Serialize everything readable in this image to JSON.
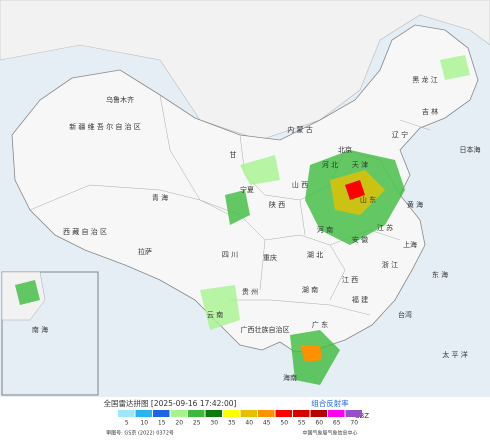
{
  "map": {
    "labels": [
      "新 疆 维 吾 尔 自 治 区",
      "乌鲁木齐",
      "西 藏 自 治 区",
      "拉萨",
      "青 海",
      "甘",
      "宁夏",
      "陕 西",
      "山 西",
      "河 北",
      "北京",
      "天 津",
      "内 蒙 古",
      "山 东",
      "河 南",
      "湖 北",
      "重庆",
      "四 川",
      "湖 南",
      "江 西",
      "安 徽",
      "江 苏",
      "上海",
      "浙 江",
      "福 建",
      "台湾",
      "广 东",
      "广西壮族自治区",
      "贵 州",
      "云 南",
      "海南",
      "黑 龙 江",
      "吉 林",
      "辽 宁",
      "黄 海",
      "东 海",
      "日本海",
      "太 平 洋",
      "南 海"
    ]
  },
  "legend": {
    "title": "全国雷达拼图 [2025-09-16 17:42:00]",
    "product": "组合反射率",
    "unit": "dBZ",
    "items": [
      {
        "value": 5,
        "color": "#9ee6f8"
      },
      {
        "value": 10,
        "color": "#28b4f0"
      },
      {
        "value": 15,
        "color": "#1e64e6"
      },
      {
        "value": 20,
        "color": "#a6f28f"
      },
      {
        "value": 25,
        "color": "#3dba3d"
      },
      {
        "value": 30,
        "color": "#0a7a0a"
      },
      {
        "value": 35,
        "color": "#ffff00"
      },
      {
        "value": 40,
        "color": "#e6c000"
      },
      {
        "value": 45,
        "color": "#ff9000"
      },
      {
        "value": 50,
        "color": "#ff0000"
      },
      {
        "value": 55,
        "color": "#d60000"
      },
      {
        "value": 60,
        "color": "#b40000"
      },
      {
        "value": 65,
        "color": "#ff00f0"
      },
      {
        "value": 70,
        "color": "#9650c8"
      }
    ],
    "review_no": "审图号: GS京 (2022) 0372号",
    "source": "中国气象局气象信息中心"
  }
}
